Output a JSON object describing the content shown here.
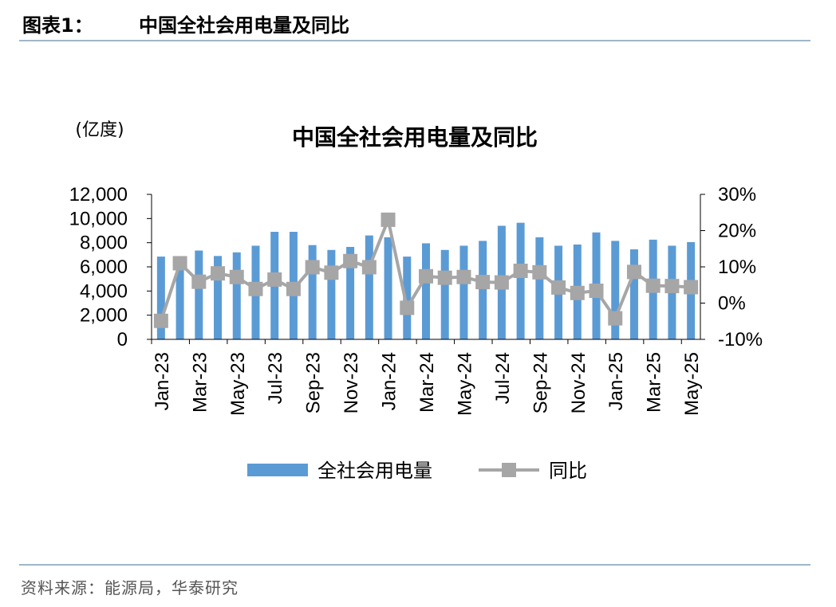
{
  "figure": {
    "label": "图表1：",
    "title": "中国全社会用电量及同比",
    "source": "资料来源：能源局，华泰研究"
  },
  "chart_data": {
    "type": "bar",
    "title": "中国全社会用电量及同比",
    "unit_label": "(亿度)",
    "categories": [
      "Jan-23",
      "Feb-23",
      "Mar-23",
      "Apr-23",
      "May-23",
      "Jun-23",
      "Jul-23",
      "Aug-23",
      "Sep-23",
      "Oct-23",
      "Nov-23",
      "Dec-23",
      "Jan-24",
      "Feb-24",
      "Mar-24",
      "Apr-24",
      "May-24",
      "Jun-24",
      "Jul-24",
      "Aug-24",
      "Sep-24",
      "Oct-24",
      "Nov-24",
      "Dec-24",
      "Jan-25",
      "Feb-25",
      "Mar-25",
      "Apr-25",
      "May-25"
    ],
    "x_tick_labels": [
      "Jan-23",
      "Mar-23",
      "May-23",
      "Jul-23",
      "Sep-23",
      "Nov-23",
      "Jan-24",
      "Mar-24",
      "May-24",
      "Jul-24",
      "Sep-24",
      "Nov-24",
      "Jan-25",
      "Mar-25",
      "May-25"
    ],
    "series": [
      {
        "name": "全社会用电量",
        "type": "bar",
        "axis": "left",
        "color": "#5b9bd5",
        "values": [
          6850,
          6200,
          7350,
          6900,
          7200,
          7750,
          8900,
          8900,
          7800,
          7400,
          7650,
          8600,
          8450,
          6850,
          7950,
          7400,
          7750,
          8150,
          9400,
          9650,
          8450,
          7750,
          7850,
          8850,
          8150,
          7450,
          8250,
          7750,
          8050
        ]
      },
      {
        "name": "同比",
        "type": "line",
        "axis": "right",
        "color": "#a6a6a6",
        "values": [
          -4.9,
          11.0,
          5.9,
          8.2,
          7.2,
          3.9,
          6.5,
          3.9,
          9.9,
          8.4,
          11.6,
          9.9,
          23.0,
          -1.3,
          7.4,
          7.0,
          7.2,
          5.8,
          5.7,
          8.9,
          8.5,
          4.3,
          2.8,
          3.4,
          -4.2,
          8.6,
          4.8,
          4.7,
          4.4
        ]
      }
    ],
    "y_left": {
      "min": 0,
      "max": 12000,
      "ticks": [
        "0",
        "2,000",
        "4,000",
        "6,000",
        "8,000",
        "10,000",
        "12,000"
      ]
    },
    "y_right": {
      "min": -10,
      "max": 30,
      "ticks": [
        "-10%",
        "0%",
        "10%",
        "20%",
        "30%"
      ]
    },
    "grid": false,
    "legend": {
      "placement": "bottom",
      "items": [
        "全社会用电量",
        "同比"
      ]
    }
  }
}
